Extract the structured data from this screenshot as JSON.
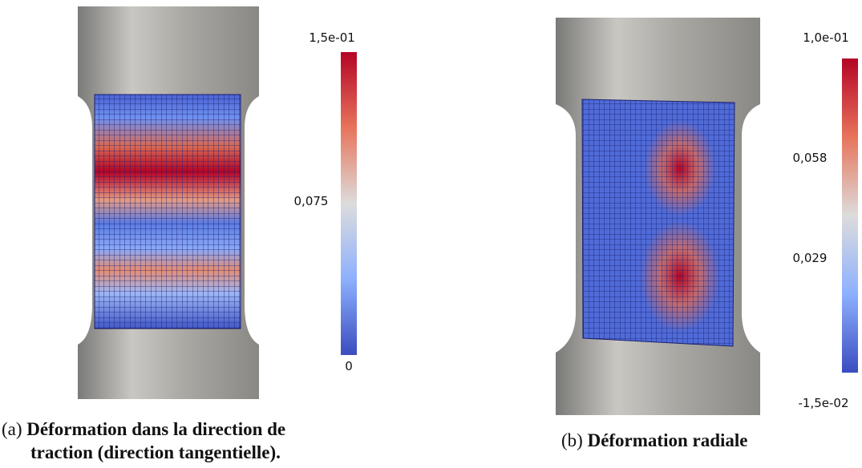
{
  "panels": [
    {
      "label": "(a)",
      "caption_line1": "Déformation dans la direction de",
      "caption_line2": "traction (direction tangentielle).",
      "colorbar": {
        "top": "1,5e-01",
        "middle": "0,075",
        "bottom": "0"
      }
    },
    {
      "label": "(b)",
      "caption": "Déformation radiale",
      "colorbar": {
        "top": "1,0e-01",
        "upper": "0,058",
        "lower": "0,029",
        "bottom": "-1,5e-02"
      }
    }
  ]
}
